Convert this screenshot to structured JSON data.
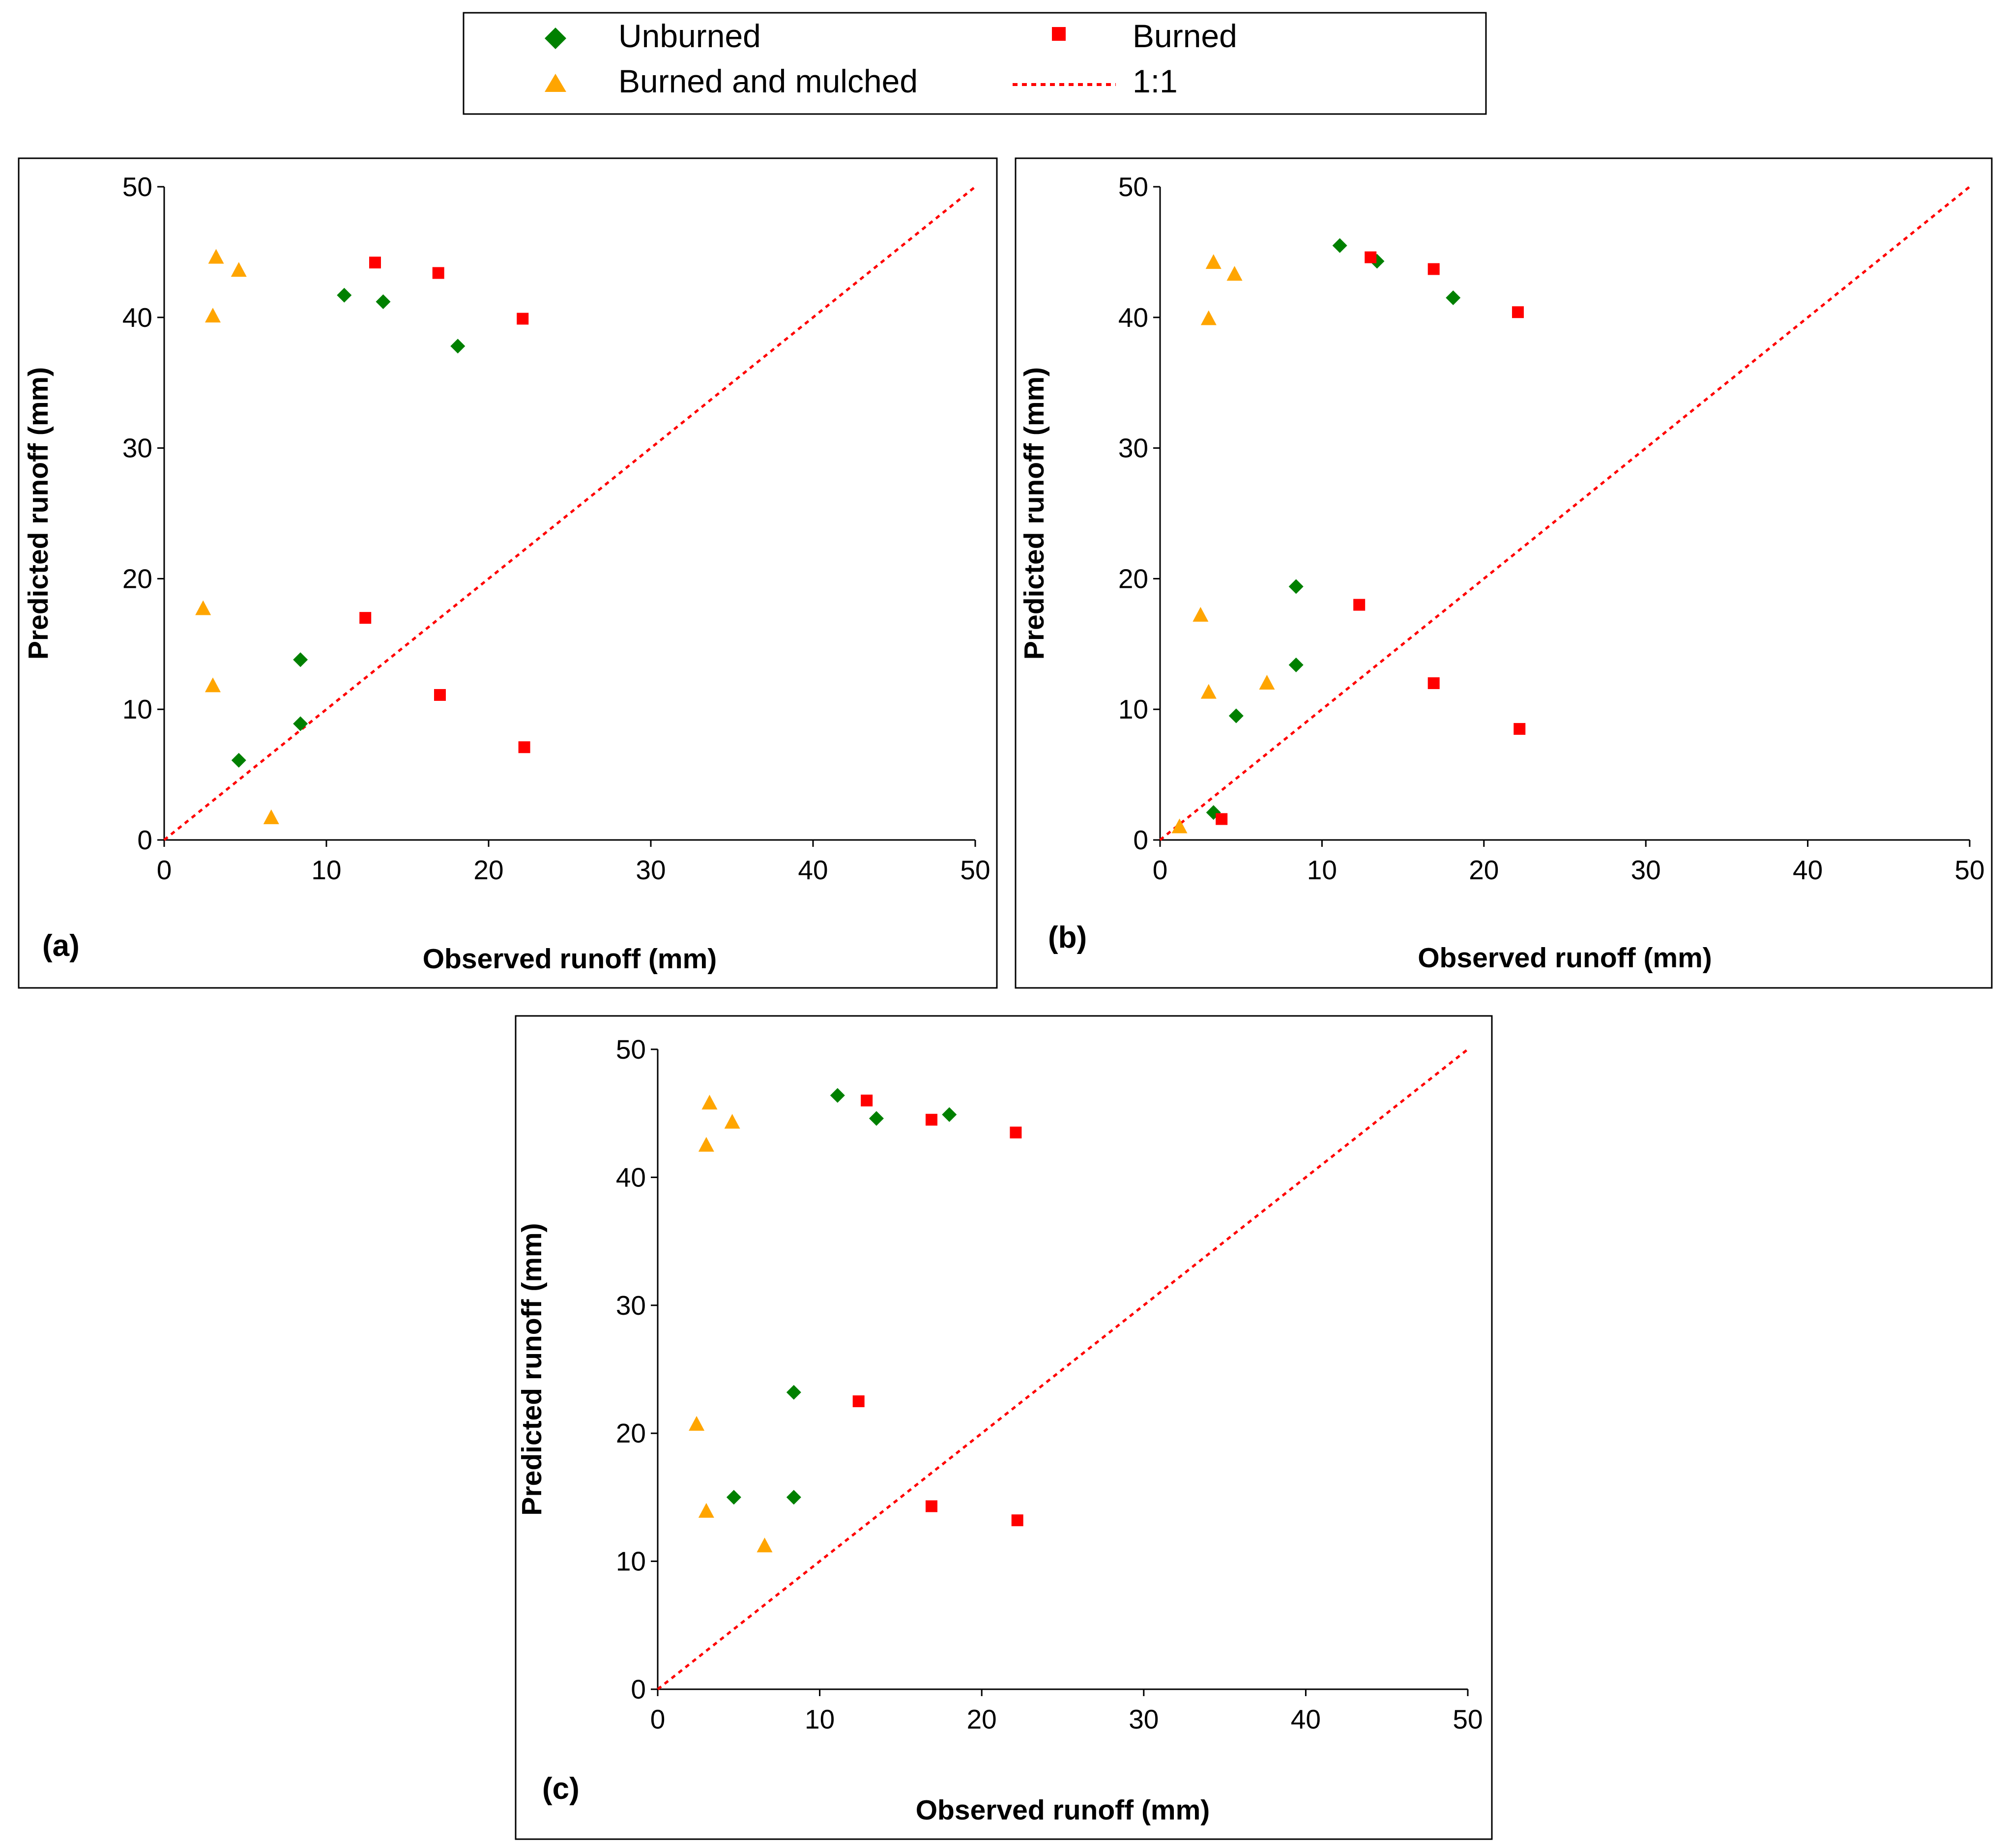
{
  "legend": {
    "entries": [
      {
        "label": "Unburned",
        "marker": "diamond",
        "color": "#008000"
      },
      {
        "label": "Burned",
        "marker": "square",
        "color": "#ff0000"
      },
      {
        "label": "Burned and mulched",
        "marker": "triangle",
        "color": "#ffa500"
      },
      {
        "label": "1:1",
        "marker": "dotted-line",
        "color": "#ff0000"
      }
    ]
  },
  "chart_data": [
    {
      "panel_label": "(a)",
      "type": "scatter",
      "xlabel": "Observed runoff (mm)",
      "ylabel": "Predicted runoff (mm)",
      "xlim": [
        0,
        50
      ],
      "ylim": [
        0,
        50
      ],
      "x_ticks": [
        "0",
        "10",
        "20",
        "30",
        "40",
        "50"
      ],
      "y_ticks": [
        "0",
        "10",
        "20",
        "30",
        "40",
        "50"
      ],
      "reference_line": {
        "name": "1:1",
        "x": [
          0,
          50
        ],
        "y": [
          0,
          50
        ]
      },
      "series": [
        {
          "name": "Unburned",
          "points": [
            [
              4.6,
              6.1
            ],
            [
              8.4,
              8.9
            ],
            [
              8.4,
              13.8
            ],
            [
              11.1,
              41.7
            ],
            [
              13.5,
              41.2
            ],
            [
              18.1,
              37.8
            ]
          ]
        },
        {
          "name": "Burned",
          "points": [
            [
              12.4,
              17.0
            ],
            [
              17.0,
              11.1
            ],
            [
              22.2,
              7.1
            ],
            [
              13.0,
              44.2
            ],
            [
              16.9,
              43.4
            ],
            [
              22.1,
              39.9
            ]
          ]
        },
        {
          "name": "Burned and mulched",
          "points": [
            [
              2.4,
              17.7
            ],
            [
              3.0,
              11.8
            ],
            [
              6.6,
              1.7
            ],
            [
              3.0,
              40.1
            ],
            [
              3.2,
              44.6
            ],
            [
              4.6,
              43.6
            ]
          ]
        }
      ]
    },
    {
      "panel_label": "(b)",
      "type": "scatter",
      "xlabel": "Observed runoff (mm)",
      "ylabel": "Predicted runoff (mm)",
      "xlim": [
        0,
        50
      ],
      "ylim": [
        0,
        50
      ],
      "x_ticks": [
        "0",
        "10",
        "20",
        "30",
        "40",
        "50"
      ],
      "y_ticks": [
        "0",
        "10",
        "20",
        "30",
        "40",
        "50"
      ],
      "reference_line": {
        "name": "1:1",
        "x": [
          0,
          50
        ],
        "y": [
          0,
          50
        ]
      },
      "series": [
        {
          "name": "Unburned",
          "points": [
            [
              3.3,
              2.1
            ],
            [
              4.7,
              9.5
            ],
            [
              8.4,
              13.4
            ],
            [
              8.4,
              19.4
            ],
            [
              11.1,
              45.5
            ],
            [
              13.4,
              44.3
            ],
            [
              18.1,
              41.5
            ]
          ]
        },
        {
          "name": "Burned",
          "points": [
            [
              3.8,
              1.6
            ],
            [
              12.3,
              18.0
            ],
            [
              16.9,
              12.0
            ],
            [
              22.2,
              8.5
            ],
            [
              13.0,
              44.6
            ],
            [
              16.9,
              43.7
            ],
            [
              22.1,
              40.4
            ]
          ]
        },
        {
          "name": "Burned and mulched",
          "points": [
            [
              1.2,
              1.0
            ],
            [
              2.5,
              17.2
            ],
            [
              3.0,
              11.3
            ],
            [
              6.6,
              12.0
            ],
            [
              3.0,
              39.9
            ],
            [
              3.3,
              44.2
            ],
            [
              4.6,
              43.3
            ]
          ]
        }
      ]
    },
    {
      "panel_label": "(c)",
      "type": "scatter",
      "xlabel": "Observed runoff (mm)",
      "ylabel": "Predicted runoff (mm)",
      "xlim": [
        0,
        50
      ],
      "ylim": [
        0,
        50
      ],
      "x_ticks": [
        "0",
        "10",
        "20",
        "30",
        "40",
        "50"
      ],
      "y_ticks": [
        "0",
        "10",
        "20",
        "30",
        "40",
        "50"
      ],
      "reference_line": {
        "name": "1:1",
        "x": [
          0,
          50
        ],
        "y": [
          0,
          50
        ]
      },
      "series": [
        {
          "name": "Unburned",
          "points": [
            [
              4.7,
              15.0
            ],
            [
              8.4,
              15.0
            ],
            [
              8.4,
              23.2
            ],
            [
              11.1,
              46.4
            ],
            [
              13.5,
              44.6
            ],
            [
              18.0,
              44.9
            ]
          ]
        },
        {
          "name": "Burned",
          "points": [
            [
              12.4,
              22.5
            ],
            [
              16.9,
              14.3
            ],
            [
              22.2,
              13.2
            ],
            [
              12.9,
              46.0
            ],
            [
              16.9,
              44.5
            ],
            [
              22.1,
              43.5
            ]
          ]
        },
        {
          "name": "Burned and mulched",
          "points": [
            [
              2.4,
              20.7
            ],
            [
              3.0,
              13.9
            ],
            [
              6.6,
              11.2
            ],
            [
              3.0,
              42.5
            ],
            [
              3.2,
              45.8
            ],
            [
              4.6,
              44.3
            ]
          ]
        }
      ]
    }
  ]
}
